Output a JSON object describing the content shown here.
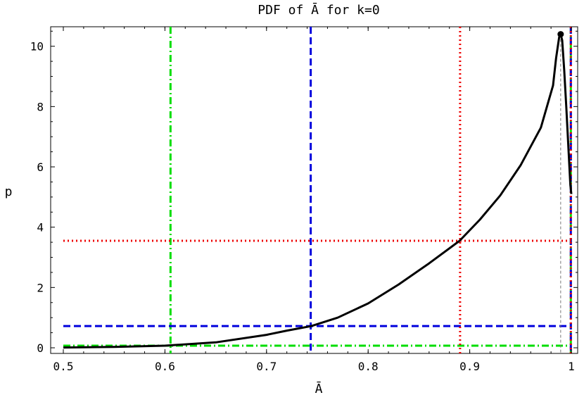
{
  "chart_data": {
    "type": "line",
    "title": "PDF of Ā for k=0",
    "xlabel": "Ā",
    "ylabel": "p",
    "xlim": [
      0.5,
      1.0
    ],
    "ylim": [
      0,
      10.6
    ],
    "xticks": [
      {
        "value": 0.5,
        "label": "0.5"
      },
      {
        "value": 0.6,
        "label": "0.6"
      },
      {
        "value": 0.7,
        "label": "0.7"
      },
      {
        "value": 0.8,
        "label": "0.8"
      },
      {
        "value": 0.9,
        "label": "0.9"
      },
      {
        "value": 1.0,
        "label": "1"
      }
    ],
    "yticks": [
      {
        "value": 0,
        "label": "0"
      },
      {
        "value": 2,
        "label": "2"
      },
      {
        "value": 4,
        "label": "4"
      },
      {
        "value": 6,
        "label": "6"
      },
      {
        "value": 8,
        "label": "8"
      },
      {
        "value": 10,
        "label": "10"
      }
    ],
    "grid": false,
    "series": [
      {
        "color": "#000000",
        "x": [
          0.5,
          0.55,
          0.6,
          0.65,
          0.7,
          0.72,
          0.744,
          0.77,
          0.8,
          0.83,
          0.86,
          0.89,
          0.91,
          0.93,
          0.95,
          0.97,
          0.982,
          0.985,
          0.988,
          0.9895,
          0.991,
          0.993,
          0.995,
          0.997,
          0.999,
          1.0
        ],
        "y": [
          0.01,
          0.03,
          0.07,
          0.18,
          0.43,
          0.57,
          0.72,
          1.0,
          1.47,
          2.1,
          2.8,
          3.55,
          4.25,
          5.05,
          6.05,
          7.3,
          8.7,
          9.6,
          10.3,
          10.4,
          10.2,
          9.2,
          8.0,
          6.7,
          5.4,
          5.1
        ]
      }
    ],
    "peak_marker": {
      "x": 0.9895,
      "y": 10.4,
      "color": "#000000"
    },
    "reference_lines": [
      {
        "orientation": "vertical",
        "value": 0.6055,
        "color": "#00dd00",
        "style": "dashdot"
      },
      {
        "orientation": "horizontal",
        "value": 0.07,
        "color": "#00dd00",
        "style": "dashdot"
      },
      {
        "orientation": "vertical",
        "value": 0.9995,
        "color": "#00dd00",
        "style": "dashdot"
      },
      {
        "orientation": "vertical",
        "value": 0.7435,
        "color": "#0000dd",
        "style": "dashed"
      },
      {
        "orientation": "horizontal",
        "value": 0.72,
        "color": "#0000dd",
        "style": "dashed"
      },
      {
        "orientation": "vertical",
        "value": 0.9995,
        "color": "#0000dd",
        "style": "dashed"
      },
      {
        "orientation": "vertical",
        "value": 0.8905,
        "color": "#ee0000",
        "style": "dotted"
      },
      {
        "orientation": "horizontal",
        "value": 3.55,
        "color": "#ee0000",
        "style": "dotted"
      },
      {
        "orientation": "vertical",
        "value": 0.9995,
        "color": "#ee0000",
        "style": "dotted"
      },
      {
        "orientation": "vertical",
        "value": 0.9895,
        "color": "#777777",
        "style": "dashed-thin"
      }
    ]
  }
}
